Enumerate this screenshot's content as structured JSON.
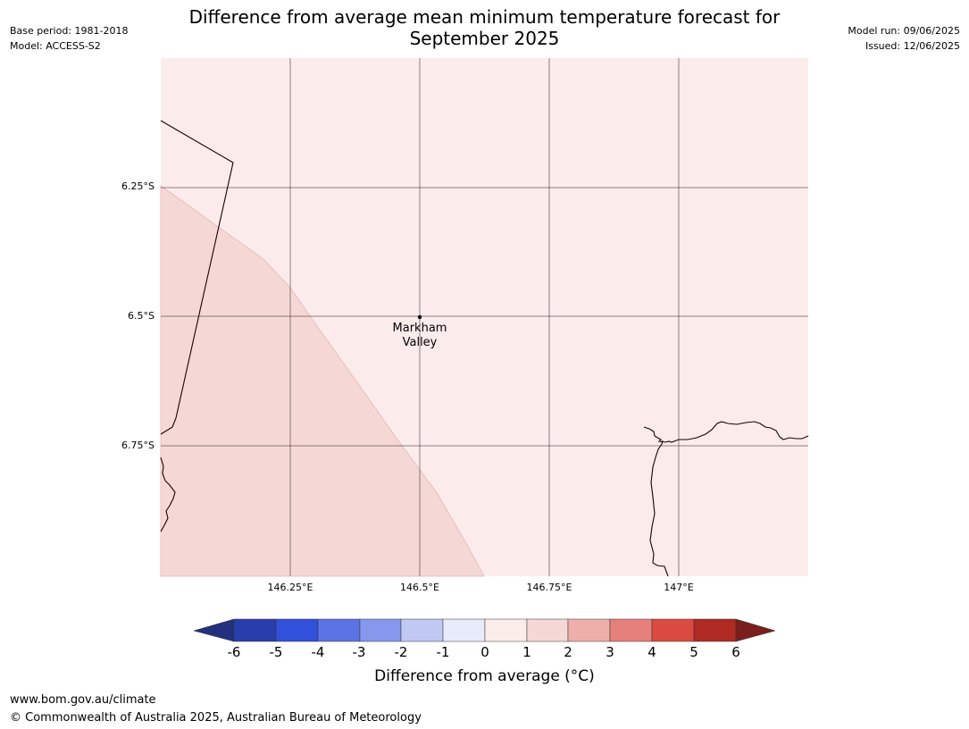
{
  "header": {
    "title": "Difference from average mean minimum temperature forecast for\nSeptember 2025",
    "base_period": "Base period: 1981-2018",
    "model": "Model: ACCESS-S2",
    "model_run": "Model run: 09/06/2025",
    "issued": "Issued: 12/06/2025"
  },
  "map": {
    "lat_ticks": [
      "6.25°S",
      "6.5°S",
      "6.75°S"
    ],
    "lon_ticks": [
      "146.25°E",
      "146.5°E",
      "146.75°E",
      "147°E"
    ],
    "place": "Markham\nValley",
    "fill_colors": {
      "anomaly_0_to_1": "#fbeceb",
      "anomaly_1_to_2": "#f5d8d6"
    }
  },
  "colorbar": {
    "ticks": [
      "-6",
      "-5",
      "-4",
      "-3",
      "-2",
      "-1",
      "0",
      "1",
      "2",
      "3",
      "4",
      "5",
      "6"
    ],
    "colors": [
      "#23307e",
      "#293ead",
      "#3150dc",
      "#5c73e6",
      "#8797ed",
      "#c0c8f4",
      "#e8ebfb",
      "#fcecea",
      "#f5d8d6",
      "#eeaeaa",
      "#e6807b",
      "#db4a40",
      "#ae2a23",
      "#7a1f1d"
    ],
    "label": "Difference from average (°C)"
  },
  "footer": {
    "url": "www.bom.gov.au/climate",
    "copyright": "© Commonwealth of Australia 2025, Australian Bureau of Meteorology"
  }
}
